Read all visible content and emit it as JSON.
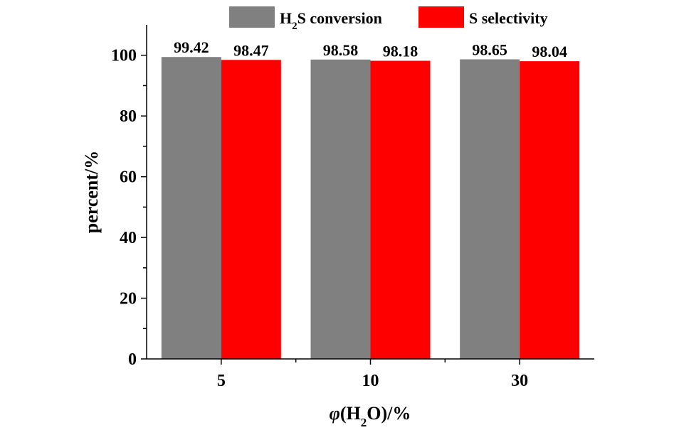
{
  "chart_data": {
    "type": "bar",
    "categories": [
      "5",
      "10",
      "30"
    ],
    "series": [
      {
        "name": "H2S conversion",
        "name_parts": {
          "main": "H",
          "sub": "2",
          "rest": "S conversion"
        },
        "values": [
          99.42,
          98.58,
          98.65
        ],
        "color": "#808080"
      },
      {
        "name": "S selectivity",
        "values": [
          98.47,
          98.18,
          98.04
        ],
        "color": "#ff0000"
      }
    ],
    "data_labels": [
      [
        "99.42",
        "98.58",
        "98.65"
      ],
      [
        "98.47",
        "98.18",
        "98.04"
      ]
    ],
    "xlabel": "φ(H2O)/%",
    "xlabel_parts": {
      "symbol": "φ",
      "open": "(H",
      "sub": "2",
      "close": "O)/%"
    },
    "ylabel": "percent/%",
    "ylim": [
      0,
      110
    ],
    "yticks": [
      0,
      20,
      40,
      60,
      80,
      100
    ],
    "ytick_labels": [
      "0",
      "20",
      "40",
      "60",
      "80",
      "100"
    ],
    "grid": false,
    "legend_position": "top-center"
  }
}
